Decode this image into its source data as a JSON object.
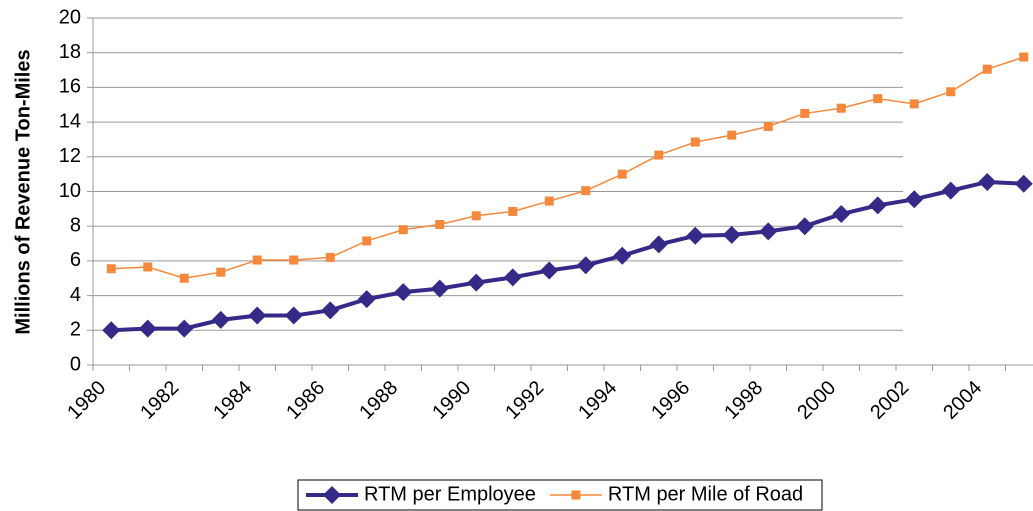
{
  "chart_data": {
    "type": "line",
    "y_label": "Millions of Revenue Ton-Miles",
    "categories": [
      "1980",
      null,
      "1982",
      null,
      "1984",
      null,
      "1986",
      null,
      "1988",
      null,
      "1990",
      null,
      "1992",
      null,
      "1994",
      null,
      "1996",
      null,
      "1998",
      null,
      "2000",
      null,
      "2002",
      null,
      "2004",
      null
    ],
    "series": [
      {
        "name": "RTM per Employee",
        "color": "#352a87",
        "marker": "diamond",
        "values": [
          2.0,
          2.1,
          2.1,
          2.6,
          2.85,
          2.85,
          3.15,
          3.8,
          4.2,
          4.4,
          4.75,
          5.05,
          5.45,
          5.75,
          6.3,
          6.95,
          7.45,
          7.5,
          7.7,
          8.0,
          8.7,
          9.2,
          9.55,
          10.05,
          10.55,
          10.45
        ]
      },
      {
        "name": "RTM per Mile of Road",
        "color": "#f5883a",
        "marker": "square",
        "values": [
          5.55,
          5.65,
          5.0,
          5.35,
          6.05,
          6.05,
          6.2,
          7.15,
          7.8,
          8.1,
          8.6,
          8.85,
          9.45,
          10.05,
          11.0,
          12.1,
          12.85,
          13.25,
          13.75,
          14.5,
          14.8,
          15.35,
          15.05,
          15.75,
          17.05,
          17.75
        ]
      }
    ],
    "ylim": [
      0,
      20
    ],
    "yticks": [
      0,
      2,
      4,
      6,
      8,
      10,
      12,
      14,
      16,
      18,
      20
    ],
    "grid": true,
    "legend": "bottom"
  }
}
